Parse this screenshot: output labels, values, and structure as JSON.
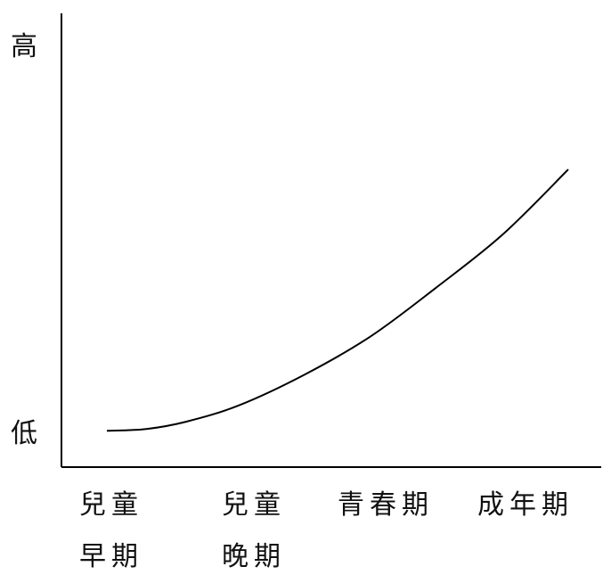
{
  "chart_data": {
    "type": "line",
    "y_high_label": "高",
    "y_low_label": "低",
    "categories": [
      "兒童\n早期",
      "兒童\n晚期",
      "青春期",
      "成年期"
    ],
    "series": [
      {
        "x": [
          0,
          0.3,
          0.6,
          1,
          1.5,
          2,
          2.5,
          3,
          3.5
        ],
        "values": [
          0,
          0.01,
          0.05,
          0.14,
          0.31,
          0.52,
          0.79,
          1.08,
          1.44
        ]
      }
    ],
    "ylim": [
      -0.2,
      2.3
    ],
    "grid": false
  }
}
